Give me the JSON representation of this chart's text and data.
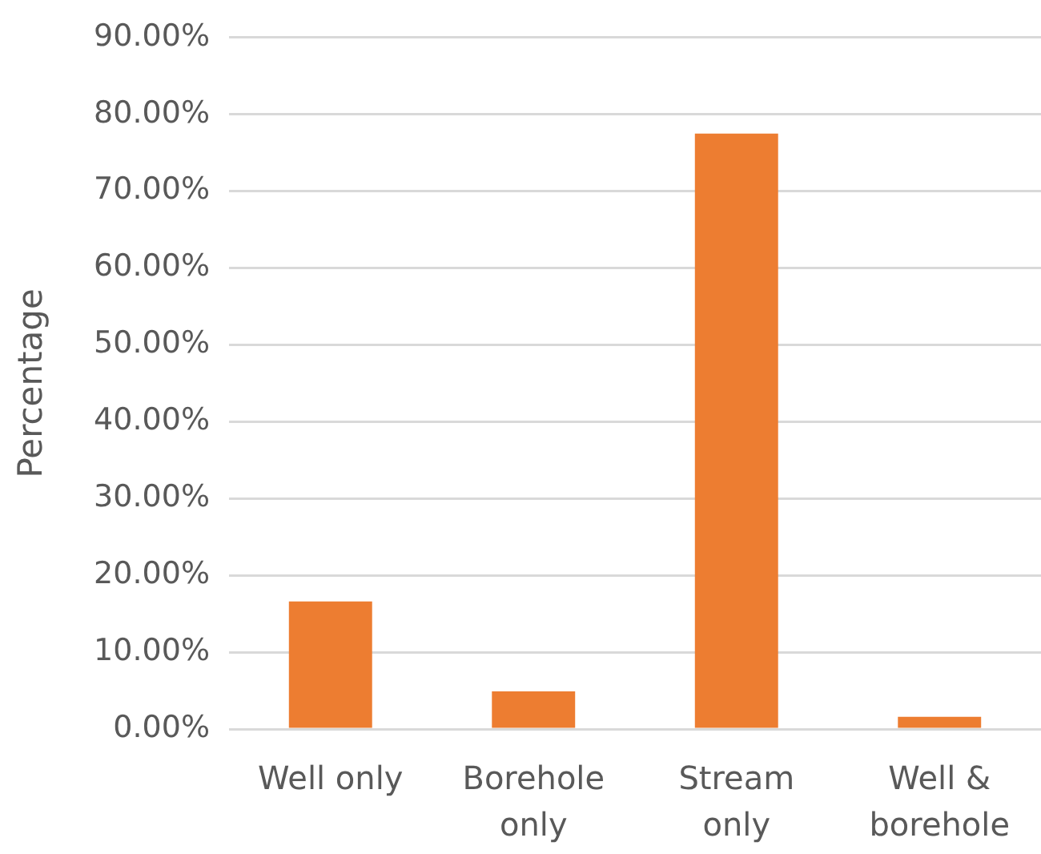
{
  "chart_data": {
    "type": "bar",
    "ylabel": "Percentage",
    "categories": [
      "Well only",
      "Borehole only",
      "Stream only",
      "Well & borehole"
    ],
    "values": [
      16.6,
      4.9,
      77.5,
      1.6
    ],
    "color": "#ed7d31",
    "ylim": [
      0,
      90
    ],
    "yticks": [
      {
        "value": 0,
        "label": "0.00%"
      },
      {
        "value": 10,
        "label": "10.00%"
      },
      {
        "value": 20,
        "label": "20.00%"
      },
      {
        "value": 30,
        "label": "30.00%"
      },
      {
        "value": 40,
        "label": "40.00%"
      },
      {
        "value": 50,
        "label": "50.00%"
      },
      {
        "value": 60,
        "label": "60.00%"
      },
      {
        "value": 70,
        "label": "70.00%"
      },
      {
        "value": 80,
        "label": "80.00%"
      },
      {
        "value": 90,
        "label": "90.00%"
      }
    ],
    "grid": "y"
  }
}
